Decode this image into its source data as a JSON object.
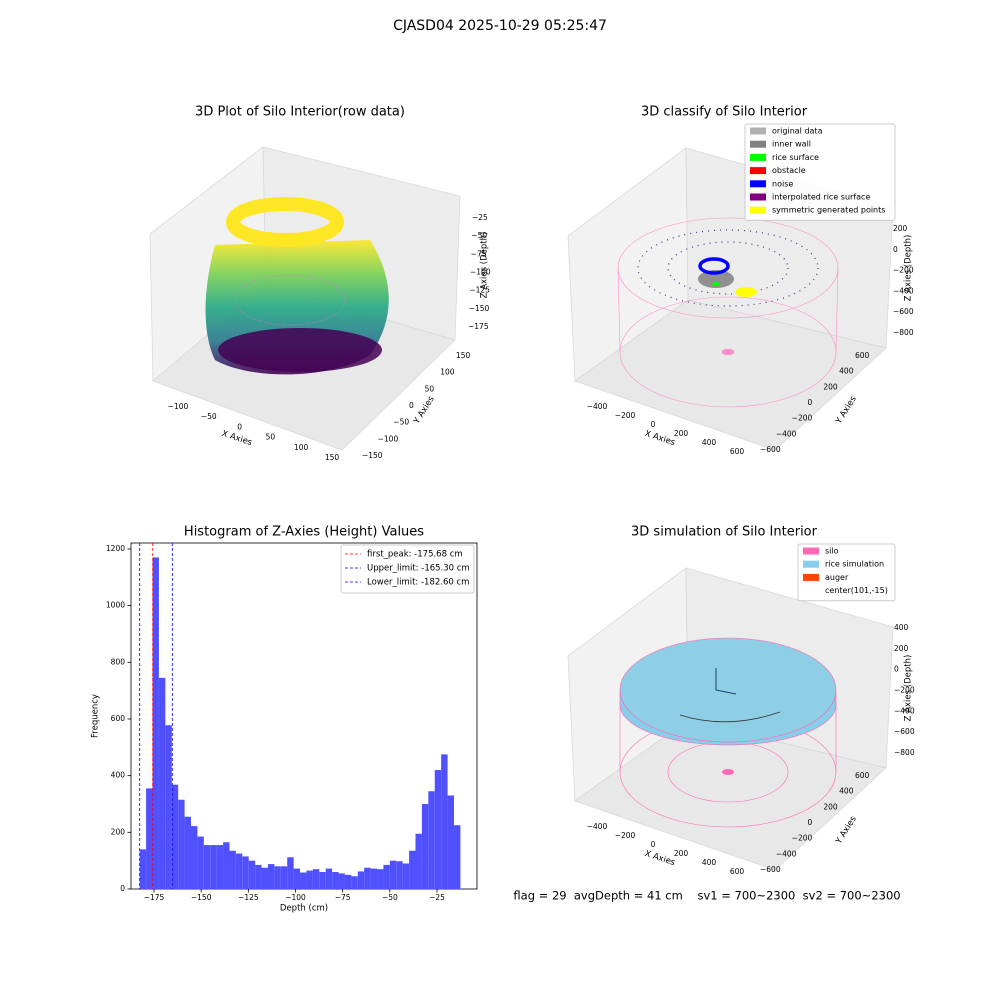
{
  "suptitle": "CJASD04 2025-10-29 05:25:47",
  "footer": "flag = 29  avgDepth = 41 cm    sv1 = 700~2300  sv2 = 700~2300",
  "chart_data": [
    {
      "type": "scatter3d",
      "title": "3D Plot of Silo Interior(row data)",
      "xlabel": "X Axies",
      "ylabel": "Y Axies",
      "zlabel": "Z Axies (Depth)",
      "xlim": [
        -130,
        170
      ],
      "xticks": [
        {
          "value": -100,
          "label": "−100"
        },
        {
          "value": -50,
          "label": "−50"
        },
        0,
        50,
        100,
        150
      ],
      "ylim": [
        -170,
        170
      ],
      "yticks": [
        {
          "value": -150,
          "label": "−150"
        },
        {
          "value": -100,
          "label": "−100"
        },
        {
          "value": -50,
          "label": "−50"
        },
        0,
        50,
        100,
        150
      ],
      "zlim": [
        -190,
        -10
      ],
      "zticks": [
        {
          "value": -25,
          "label": "−25"
        },
        {
          "value": -50,
          "label": "−50"
        },
        {
          "value": -75,
          "label": "−75"
        },
        {
          "value": -100,
          "label": "−100"
        },
        {
          "value": -125,
          "label": "−125"
        },
        {
          "value": -150,
          "label": "−150"
        },
        {
          "value": -175,
          "label": "−175"
        }
      ]
    },
    {
      "type": "wireframe3d",
      "title": "3D classify of Silo Interior",
      "xlabel": "X Axies",
      "ylabel": "Y Axies",
      "zlabel": "Z Axies (Depth)",
      "xlim": [
        -520,
        760
      ],
      "xticks": [
        {
          "value": -400,
          "label": "−400"
        },
        {
          "value": -200,
          "label": "−200"
        },
        0,
        200,
        400,
        600
      ],
      "ylim": [
        -700,
        700
      ],
      "yticks": [
        {
          "value": -600,
          "label": "−600"
        },
        {
          "value": -400,
          "label": "−400"
        },
        {
          "value": -200,
          "label": "−200"
        },
        0,
        200,
        400,
        600
      ],
      "zlim": [
        -900,
        300
      ],
      "zticks": [
        200,
        0,
        {
          "value": -200,
          "label": "−200"
        },
        {
          "value": -400,
          "label": "−400"
        },
        {
          "value": -600,
          "label": "−600"
        },
        {
          "value": -800,
          "label": "−800"
        }
      ],
      "series": [
        {
          "name": "original data",
          "color": "#b0b0b0"
        },
        {
          "name": "inner wall",
          "color": "#808080"
        },
        {
          "name": "rice surface",
          "color": "#00ff00"
        },
        {
          "name": "obstacle",
          "color": "#ff0000"
        },
        {
          "name": "noise",
          "color": "#0000ff"
        },
        {
          "name": "interpolated rice surface",
          "color": "#800080"
        },
        {
          "name": "symmetric generated points",
          "color": "#ffff00"
        }
      ]
    },
    {
      "type": "histogram",
      "title": "Histogram of Z-Axies (Height) Values",
      "xlabel": "Depth (cm)",
      "ylabel": "Frequency",
      "color": "#5050ff",
      "bins": [
        -182.6,
        -179.2,
        -175.8,
        -172.4,
        -169,
        -165.6,
        -162.2,
        -158.8,
        -155.4,
        -152,
        -148.6,
        -145.2,
        -141.8,
        -138.4,
        -135,
        -131.6,
        -128.2,
        -124.8,
        -121.4,
        -118,
        -114.6,
        -111.2,
        -107.8,
        -104.4,
        -101,
        -97.6,
        -94.2,
        -90.8,
        -87.4,
        -84,
        -80.6,
        -77.2,
        -73.8,
        -70.4,
        -67,
        -63.6,
        -60.2,
        -56.8,
        -53.4,
        -50,
        -46.6,
        -43.2,
        -39.8,
        -36.4,
        -33,
        -29.6,
        -26.2,
        -22.8,
        -19.4,
        -16,
        -12.6
      ],
      "values": [
        140,
        355,
        1170,
        745,
        578,
        368,
        315,
        255,
        222,
        185,
        155,
        155,
        155,
        165,
        135,
        125,
        115,
        100,
        85,
        75,
        88,
        80,
        80,
        112,
        72,
        58,
        65,
        70,
        60,
        72,
        60,
        55,
        50,
        45,
        62,
        75,
        72,
        70,
        85,
        100,
        98,
        90,
        135,
        195,
        300,
        345,
        420,
        475,
        330,
        225
      ],
      "xlim": [
        -187.2,
        -3.8
      ],
      "xticks": [
        {
          "value": -175,
          "label": "−175"
        },
        {
          "value": -150,
          "label": "−150"
        },
        {
          "value": -125,
          "label": "−125"
        },
        {
          "value": -100,
          "label": "−100"
        },
        {
          "value": -75,
          "label": "−75"
        },
        {
          "value": -50,
          "label": "−50"
        },
        {
          "value": -25,
          "label": "−25"
        }
      ],
      "ylim": [
        0,
        1221
      ],
      "yticks": [
        0,
        200,
        400,
        600,
        800,
        1000,
        1200
      ],
      "vlines": [
        {
          "value": -175.68,
          "label": "first_peak: -175.68 cm",
          "color": "#ff0000"
        },
        {
          "value": -165.3,
          "label": "Upper_limit: -165.30 cm",
          "color": "#0000ff"
        },
        {
          "value": -182.6,
          "label": "Lower_limit: -182.60 cm",
          "color": "#0000ff"
        }
      ],
      "legend": "upper right"
    },
    {
      "type": "surface3d",
      "title": "3D simulation of Silo Interior",
      "xlabel": "X Axies",
      "ylabel": "Y Axies",
      "zlabel": "Z Axies (Depth)",
      "xlim": [
        -520,
        760
      ],
      "xticks": [
        {
          "value": -400,
          "label": "−400"
        },
        {
          "value": -200,
          "label": "−200"
        },
        0,
        200,
        400,
        600
      ],
      "ylim": [
        -700,
        700
      ],
      "yticks": [
        {
          "value": -600,
          "label": "−600"
        },
        {
          "value": -400,
          "label": "−400"
        },
        {
          "value": -200,
          "label": "−200"
        },
        0,
        200,
        400,
        600
      ],
      "zlim": [
        -900,
        500
      ],
      "zticks": [
        400,
        200,
        0,
        {
          "value": -200,
          "label": "−200"
        },
        {
          "value": -400,
          "label": "−400"
        },
        {
          "value": -600,
          "label": "−600"
        },
        {
          "value": -800,
          "label": "−800"
        }
      ],
      "series": [
        {
          "name": "silo",
          "color": "#ff69b4"
        },
        {
          "name": "rice simulation",
          "color": "#87ceeb"
        },
        {
          "name": "auger",
          "color": "#ff4500"
        },
        {
          "name": "center(101,-15)",
          "color": "#ffffff"
        }
      ]
    }
  ]
}
